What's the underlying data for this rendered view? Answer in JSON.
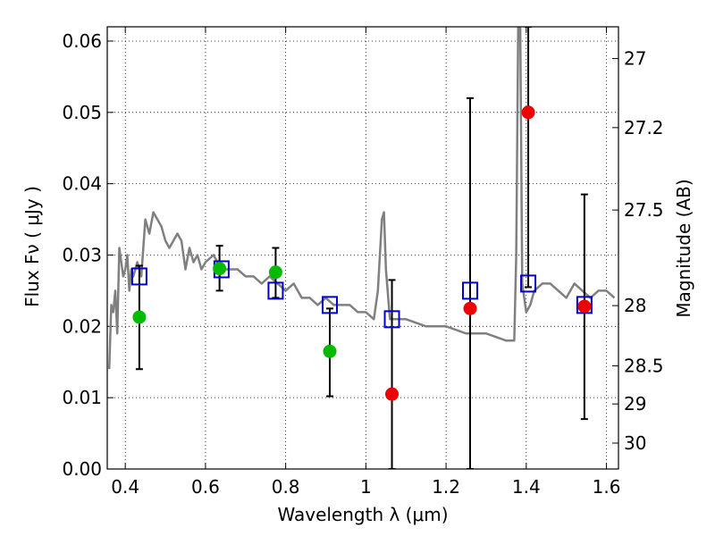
{
  "chart_data": {
    "type": "scatter",
    "xlabel": "Wavelength  λ (μm)",
    "ylabel": "Flux  Fν  ( μJy )",
    "y2label": "Magnitude (AB)",
    "xlim": [
      0.355,
      1.63
    ],
    "ylim": [
      0.0,
      0.062
    ],
    "grid": true,
    "x_ticks": [
      {
        "v": 0.4,
        "label": "0.4"
      },
      {
        "v": 0.6,
        "label": "0.6"
      },
      {
        "v": 0.8,
        "label": "0.8"
      },
      {
        "v": 1.0,
        "label": "1"
      },
      {
        "v": 1.2,
        "label": "1.2"
      },
      {
        "v": 1.4,
        "label": "1.4"
      },
      {
        "v": 1.6,
        "label": "1.6"
      }
    ],
    "y_ticks": [
      {
        "v": 0.0,
        "label": "0.00"
      },
      {
        "v": 0.01,
        "label": "0.01"
      },
      {
        "v": 0.02,
        "label": "0.02"
      },
      {
        "v": 0.03,
        "label": "0.03"
      },
      {
        "v": 0.04,
        "label": "0.04"
      },
      {
        "v": 0.05,
        "label": "0.05"
      },
      {
        "v": 0.06,
        "label": "0.06"
      }
    ],
    "y2_ticks": [
      {
        "v": 27.0,
        "label": "27"
      },
      {
        "v": 27.2,
        "label": "27.2"
      },
      {
        "v": 27.5,
        "label": "27.5"
      },
      {
        "v": 28.0,
        "label": "28"
      },
      {
        "v": 28.5,
        "label": "28.5"
      },
      {
        "v": 29.0,
        "label": "29"
      },
      {
        "v": 30.0,
        "label": "30"
      }
    ],
    "series": [
      {
        "kind": "model",
        "color": "#808080",
        "x": [
          0.36,
          0.365,
          0.37,
          0.375,
          0.38,
          0.385,
          0.39,
          0.395,
          0.4,
          0.405,
          0.41,
          0.415,
          0.42,
          0.43,
          0.44,
          0.45,
          0.46,
          0.47,
          0.48,
          0.49,
          0.5,
          0.51,
          0.52,
          0.53,
          0.54,
          0.55,
          0.56,
          0.57,
          0.58,
          0.59,
          0.6,
          0.62,
          0.64,
          0.66,
          0.68,
          0.7,
          0.72,
          0.74,
          0.76,
          0.78,
          0.8,
          0.82,
          0.84,
          0.86,
          0.88,
          0.9,
          0.92,
          0.94,
          0.96,
          0.98,
          1.0,
          1.02,
          1.03,
          1.04,
          1.045,
          1.05,
          1.06,
          1.08,
          1.1,
          1.15,
          1.2,
          1.25,
          1.3,
          1.35,
          1.36,
          1.37,
          1.375,
          1.38,
          1.385,
          1.39,
          1.4,
          1.41,
          1.42,
          1.44,
          1.46,
          1.48,
          1.5,
          1.52,
          1.54,
          1.56,
          1.58,
          1.6,
          1.62
        ],
        "y": [
          0.014,
          0.023,
          0.022,
          0.025,
          0.019,
          0.031,
          0.029,
          0.027,
          0.028,
          0.03,
          0.025,
          0.028,
          0.027,
          0.029,
          0.027,
          0.035,
          0.033,
          0.036,
          0.035,
          0.034,
          0.032,
          0.031,
          0.032,
          0.033,
          0.032,
          0.028,
          0.031,
          0.029,
          0.03,
          0.028,
          0.029,
          0.03,
          0.028,
          0.028,
          0.028,
          0.027,
          0.027,
          0.026,
          0.027,
          0.026,
          0.025,
          0.026,
          0.024,
          0.024,
          0.023,
          0.024,
          0.023,
          0.023,
          0.023,
          0.022,
          0.022,
          0.021,
          0.025,
          0.035,
          0.036,
          0.028,
          0.021,
          0.021,
          0.021,
          0.02,
          0.02,
          0.019,
          0.019,
          0.018,
          0.018,
          0.018,
          0.03,
          0.062,
          0.062,
          0.026,
          0.022,
          0.023,
          0.025,
          0.026,
          0.026,
          0.025,
          0.024,
          0.026,
          0.025,
          0.024,
          0.025,
          0.025,
          0.024
        ]
      },
      {
        "kind": "model_photometry",
        "marker": "open-square",
        "color": "#0000cc",
        "x": [
          0.435,
          0.64,
          0.775,
          0.91,
          1.065,
          1.26,
          1.405,
          1.545
        ],
        "y": [
          0.027,
          0.028,
          0.025,
          0.023,
          0.021,
          0.025,
          0.026,
          0.023
        ]
      },
      {
        "kind": "detections",
        "marker": "filled-circle",
        "color": "#00bb00",
        "x": [
          0.435,
          0.635,
          0.775,
          0.91
        ],
        "y": [
          0.0213,
          0.0281,
          0.0276,
          0.0165
        ],
        "err_low": [
          0.014,
          0.025,
          0.024,
          0.0102
        ],
        "err_high": [
          0.0285,
          0.0313,
          0.031,
          0.0225
        ]
      },
      {
        "kind": "upper_limits",
        "marker": "filled-circle",
        "color": "#ee0000",
        "x": [
          1.065,
          1.26,
          1.405,
          1.545
        ],
        "y": [
          0.0105,
          0.0225,
          0.05,
          0.0228
        ],
        "err_low": [
          0.0,
          0.0,
          0.0255,
          0.007
        ],
        "err_high": [
          0.0265,
          0.052,
          0.062,
          0.0385
        ]
      }
    ]
  }
}
